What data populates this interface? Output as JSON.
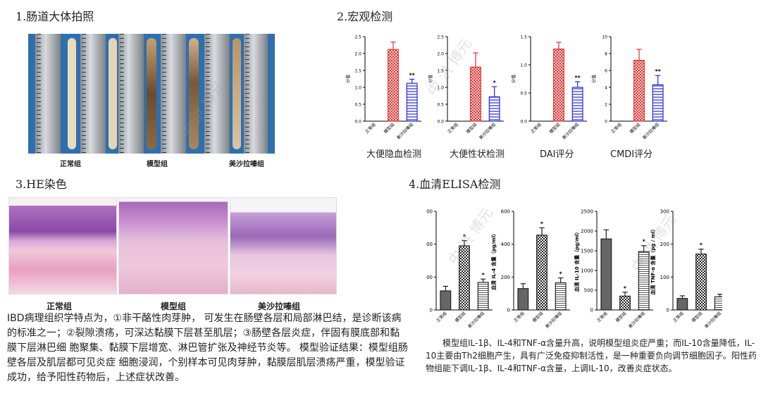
{
  "sections": {
    "s1": "1.肠道大体拍照",
    "s2": "2.宏观检测",
    "s3": "3.HE染色",
    "s4": "4.血清ELISA检测"
  },
  "groups": [
    "正常组",
    "模型组",
    "美沙拉嗪组"
  ],
  "macro_captions": [
    "大便隐血检测",
    "大便性状检测",
    "DAI评分",
    "CMDI评分"
  ],
  "ylabel_macro": "分值",
  "ylabel_elisa": [
    "血清 IL-1β 含量（pg/ml）",
    "血清 IL-4 含量（pg/ml）",
    "血清 IL-10 含量（pg/ml）",
    "血清 TNF-α 含量（pg / ml）"
  ],
  "he_paragraph": "IBD病理组织学特点为，①非干酪性肉芽肿， 可发生在肠壁各层和局部淋巴结，是诊断该病的标准之一；②裂隙溃疡，可深达黏膜下层甚至肌层；③肠壁各层炎症，伴固有膜底部和黏膜下层淋巴细 胞聚集、黏膜下层增宽、淋巴管扩张及神经节炎等。 模型验证结果：模型组肠壁各层及肌层都可见炎症 细胞浸润，个别样本可见肉芽肿，黏膜层肌层溃疡严重，模型验证成功，给予阳性药物后，上述症状改善。",
  "elisa_paragraph": "模型组IL-1β、IL-4和TNF-α含量升高，说明模型组炎症严重；而IL-10含量降低，IL-10主要由Th2细胞产生，具有广泛免疫抑制活性，是一种重要负向调节细胞因子。阳性药物组能下调IL-1β、IL-4和TNF-α含量，上调IL-10，改善炎症状态。",
  "watermark": "中 洪 博元",
  "colors": {
    "model": "#e03030",
    "mesalazine": "#2828d8",
    "gray": "#555555"
  },
  "chart_data": [
    {
      "type": "bar",
      "title": "大便隐血检测",
      "ylabel": "分值",
      "categories": [
        "正常组",
        "模型组",
        "美沙拉嗪组"
      ],
      "values": [
        0,
        2.12,
        1.12
      ],
      "errors": [
        0,
        0.22,
        0.12
      ],
      "marks": [
        "",
        "",
        "**"
      ],
      "ylim": [
        0,
        2.5
      ],
      "yticks": [
        "0.0",
        "0.5",
        "1.0",
        "1.5",
        "2.0",
        "2.5"
      ]
    },
    {
      "type": "bar",
      "title": "大便性状检测",
      "ylabel": "分值",
      "categories": [
        "正常组",
        "模型组",
        "美沙拉嗪组"
      ],
      "values": [
        0,
        1.6,
        0.72
      ],
      "errors": [
        0,
        0.42,
        0.3
      ],
      "marks": [
        "",
        "",
        "*"
      ],
      "ylim": [
        0,
        2.5
      ],
      "yticks": [
        "0.0",
        "0.5",
        "1.0",
        "1.5",
        "2.0",
        "2.5"
      ]
    },
    {
      "type": "bar",
      "title": "DAI评分",
      "ylabel": "分值",
      "categories": [
        "正常组",
        "模型组",
        "美沙拉嗪组"
      ],
      "values": [
        0,
        1.28,
        0.6
      ],
      "errors": [
        0,
        0.12,
        0.1
      ],
      "marks": [
        "",
        "",
        "**"
      ],
      "ylim": [
        0,
        1.5
      ],
      "yticks": [
        "0.0",
        "0.5",
        "1.0",
        "1.5"
      ]
    },
    {
      "type": "bar",
      "title": "CMDI评分",
      "ylabel": "分值",
      "categories": [
        "正常组",
        "模型组",
        "美沙拉嗪组"
      ],
      "values": [
        0,
        7.2,
        4.3
      ],
      "errors": [
        0,
        1.3,
        1.1
      ],
      "marks": [
        "",
        "",
        "**"
      ],
      "ylim": [
        0,
        10
      ],
      "yticks": [
        "0",
        "2",
        "4",
        "6",
        "8",
        "10"
      ]
    },
    {
      "type": "bar",
      "ylabel": "血清 IL-1β 含量（pg/ml）",
      "categories": [
        "正常组",
        "模型组",
        "美沙拉嗪组"
      ],
      "values": [
        290,
        975,
        420
      ],
      "errors": [
        70,
        80,
        50
      ],
      "marks": [
        "",
        "*",
        "*"
      ],
      "ylim": [
        0,
        1500
      ],
      "yticks": [
        "0",
        "500",
        "1000",
        "1500"
      ]
    },
    {
      "type": "bar",
      "ylabel": "血清 IL-4 含量（pg/ml）",
      "categories": [
        "正常组",
        "模型组",
        "美沙拉嗪组"
      ],
      "values": [
        130,
        455,
        165
      ],
      "errors": [
        30,
        45,
        30
      ],
      "marks": [
        "",
        "*",
        "*"
      ],
      "ylim": [
        0,
        600
      ],
      "yticks": [
        "0",
        "200",
        "400",
        "600"
      ]
    },
    {
      "type": "bar",
      "ylabel": "血清 IL-10 含量（pg/ml）",
      "categories": [
        "正常组",
        "模型组",
        "美沙拉嗪组"
      ],
      "values": [
        1800,
        350,
        1480
      ],
      "errors": [
        230,
        100,
        150
      ],
      "marks": [
        "",
        "*",
        "*"
      ],
      "ylim": [
        0,
        2500
      ],
      "yticks": [
        "0",
        "500",
        "1000",
        "1500",
        "2000",
        "2500"
      ]
    },
    {
      "type": "bar",
      "ylabel": "血清 TNF-α 含量（pg / ml）",
      "categories": [
        "正常组",
        "模型组",
        "美沙拉嗪组"
      ],
      "values": [
        35,
        170,
        40
      ],
      "errors": [
        8,
        15,
        8
      ],
      "marks": [
        "",
        "*",
        ""
      ],
      "ylim": [
        0,
        300
      ],
      "yticks": [
        "0",
        "100",
        "200",
        "300"
      ]
    }
  ]
}
